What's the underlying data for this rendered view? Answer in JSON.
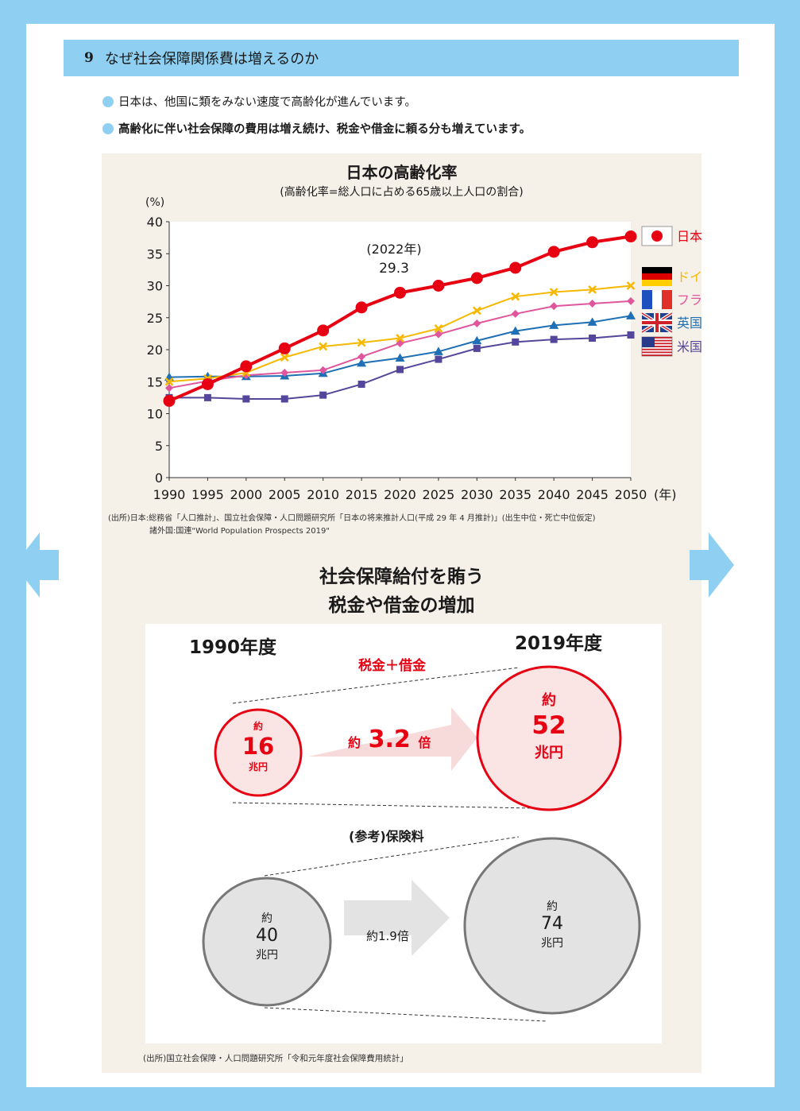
{
  "section": {
    "number": "9",
    "title": "なぜ社会保障関係費は増えるのか"
  },
  "bullets": [
    "日本は、他国に類をみない速度で高齢化が進んでいます。",
    "高齢化に伴い社会保障の費用は増え続け、税金や借金に頼る分も増えています。"
  ],
  "colors": {
    "accent": "#8fd0f2",
    "japan": "#e60012",
    "germany": "#f6b800",
    "france": "#e0569d",
    "uk": "#1f6fb5",
    "usa": "#54469a",
    "tax_circle": "#fbe4e4",
    "premium_circle": "#e3e3e3"
  },
  "chart_data": {
    "type": "line",
    "title": "日本の高齢化率",
    "subtitle": "(高齢化率=総人口に占める65歳以上人口の割合)",
    "ylabel": "(%)",
    "xlabel_suffix": "(年)",
    "ylim": [
      0,
      40
    ],
    "yticks": [
      "0",
      "5",
      "10",
      "15",
      "20",
      "25",
      "30",
      "35",
      "40"
    ],
    "x": [
      "1990",
      "1995",
      "2000",
      "2005",
      "2010",
      "2015",
      "2020",
      "2025",
      "2030",
      "2035",
      "2040",
      "2045",
      "2050"
    ],
    "annotation": {
      "line1": "(2022年)",
      "line2": "29.3"
    },
    "legend_position": "right",
    "series": [
      {
        "name": "日本",
        "color": "#e60012",
        "marker": "circle",
        "values": [
          12.0,
          14.6,
          17.4,
          20.2,
          23.0,
          26.6,
          28.9,
          30.0,
          31.2,
          32.8,
          35.3,
          36.8,
          37.7
        ]
      },
      {
        "name": "ドイツ",
        "color": "#f6b800",
        "marker": "x",
        "values": [
          15.0,
          15.5,
          16.4,
          18.8,
          20.5,
          21.1,
          21.8,
          23.3,
          26.1,
          28.3,
          29.0,
          29.4,
          30.0
        ]
      },
      {
        "name": "フランス",
        "color": "#e0569d",
        "marker": "diamond",
        "values": [
          14.0,
          15.1,
          16.0,
          16.4,
          16.8,
          18.9,
          21.0,
          22.4,
          24.1,
          25.6,
          26.8,
          27.2,
          27.6
        ]
      },
      {
        "name": "英国",
        "color": "#1f6fb5",
        "marker": "triangle",
        "values": [
          15.7,
          15.8,
          15.8,
          15.9,
          16.3,
          17.9,
          18.7,
          19.7,
          21.4,
          22.9,
          23.8,
          24.3,
          25.3
        ]
      },
      {
        "name": "米国",
        "color": "#54469a",
        "marker": "square",
        "values": [
          12.5,
          12.5,
          12.3,
          12.3,
          12.9,
          14.6,
          16.9,
          18.5,
          20.2,
          21.2,
          21.6,
          21.8,
          22.3
        ]
      }
    ]
  },
  "source1": {
    "line1": "(出所)日本:総務省「人口推計」、国立社会保障・人口問題研究所「日本の将来推計人口(平成 29 年 4 月推計)」(出生中位・死亡中位仮定)",
    "line2": "諸外国:国連\"World Population Prospects 2019\""
  },
  "comparison": {
    "title_line1": "社会保障給付を賄う",
    "title_line2": "税金や借金の増加",
    "year_left": "1990年度",
    "year_right": "2019年度",
    "tax_label": "税金＋借金",
    "tax_left": {
      "prefix": "約",
      "value": "16",
      "unit": "兆円"
    },
    "tax_ratio": {
      "prefix": "約",
      "value": "3.2",
      "suffix": "倍"
    },
    "tax_right": {
      "prefix": "約",
      "value": "52",
      "unit": "兆円"
    },
    "premium_label": "(参考)保険料",
    "premium_left": {
      "prefix": "約",
      "value": "40",
      "unit": "兆円"
    },
    "premium_ratio": "約1.9倍",
    "premium_right": {
      "prefix": "約",
      "value": "74",
      "unit": "兆円"
    }
  },
  "source2": "(出所)国立社会保障・人口問題研究所「令和元年度社会保障費用統計」"
}
